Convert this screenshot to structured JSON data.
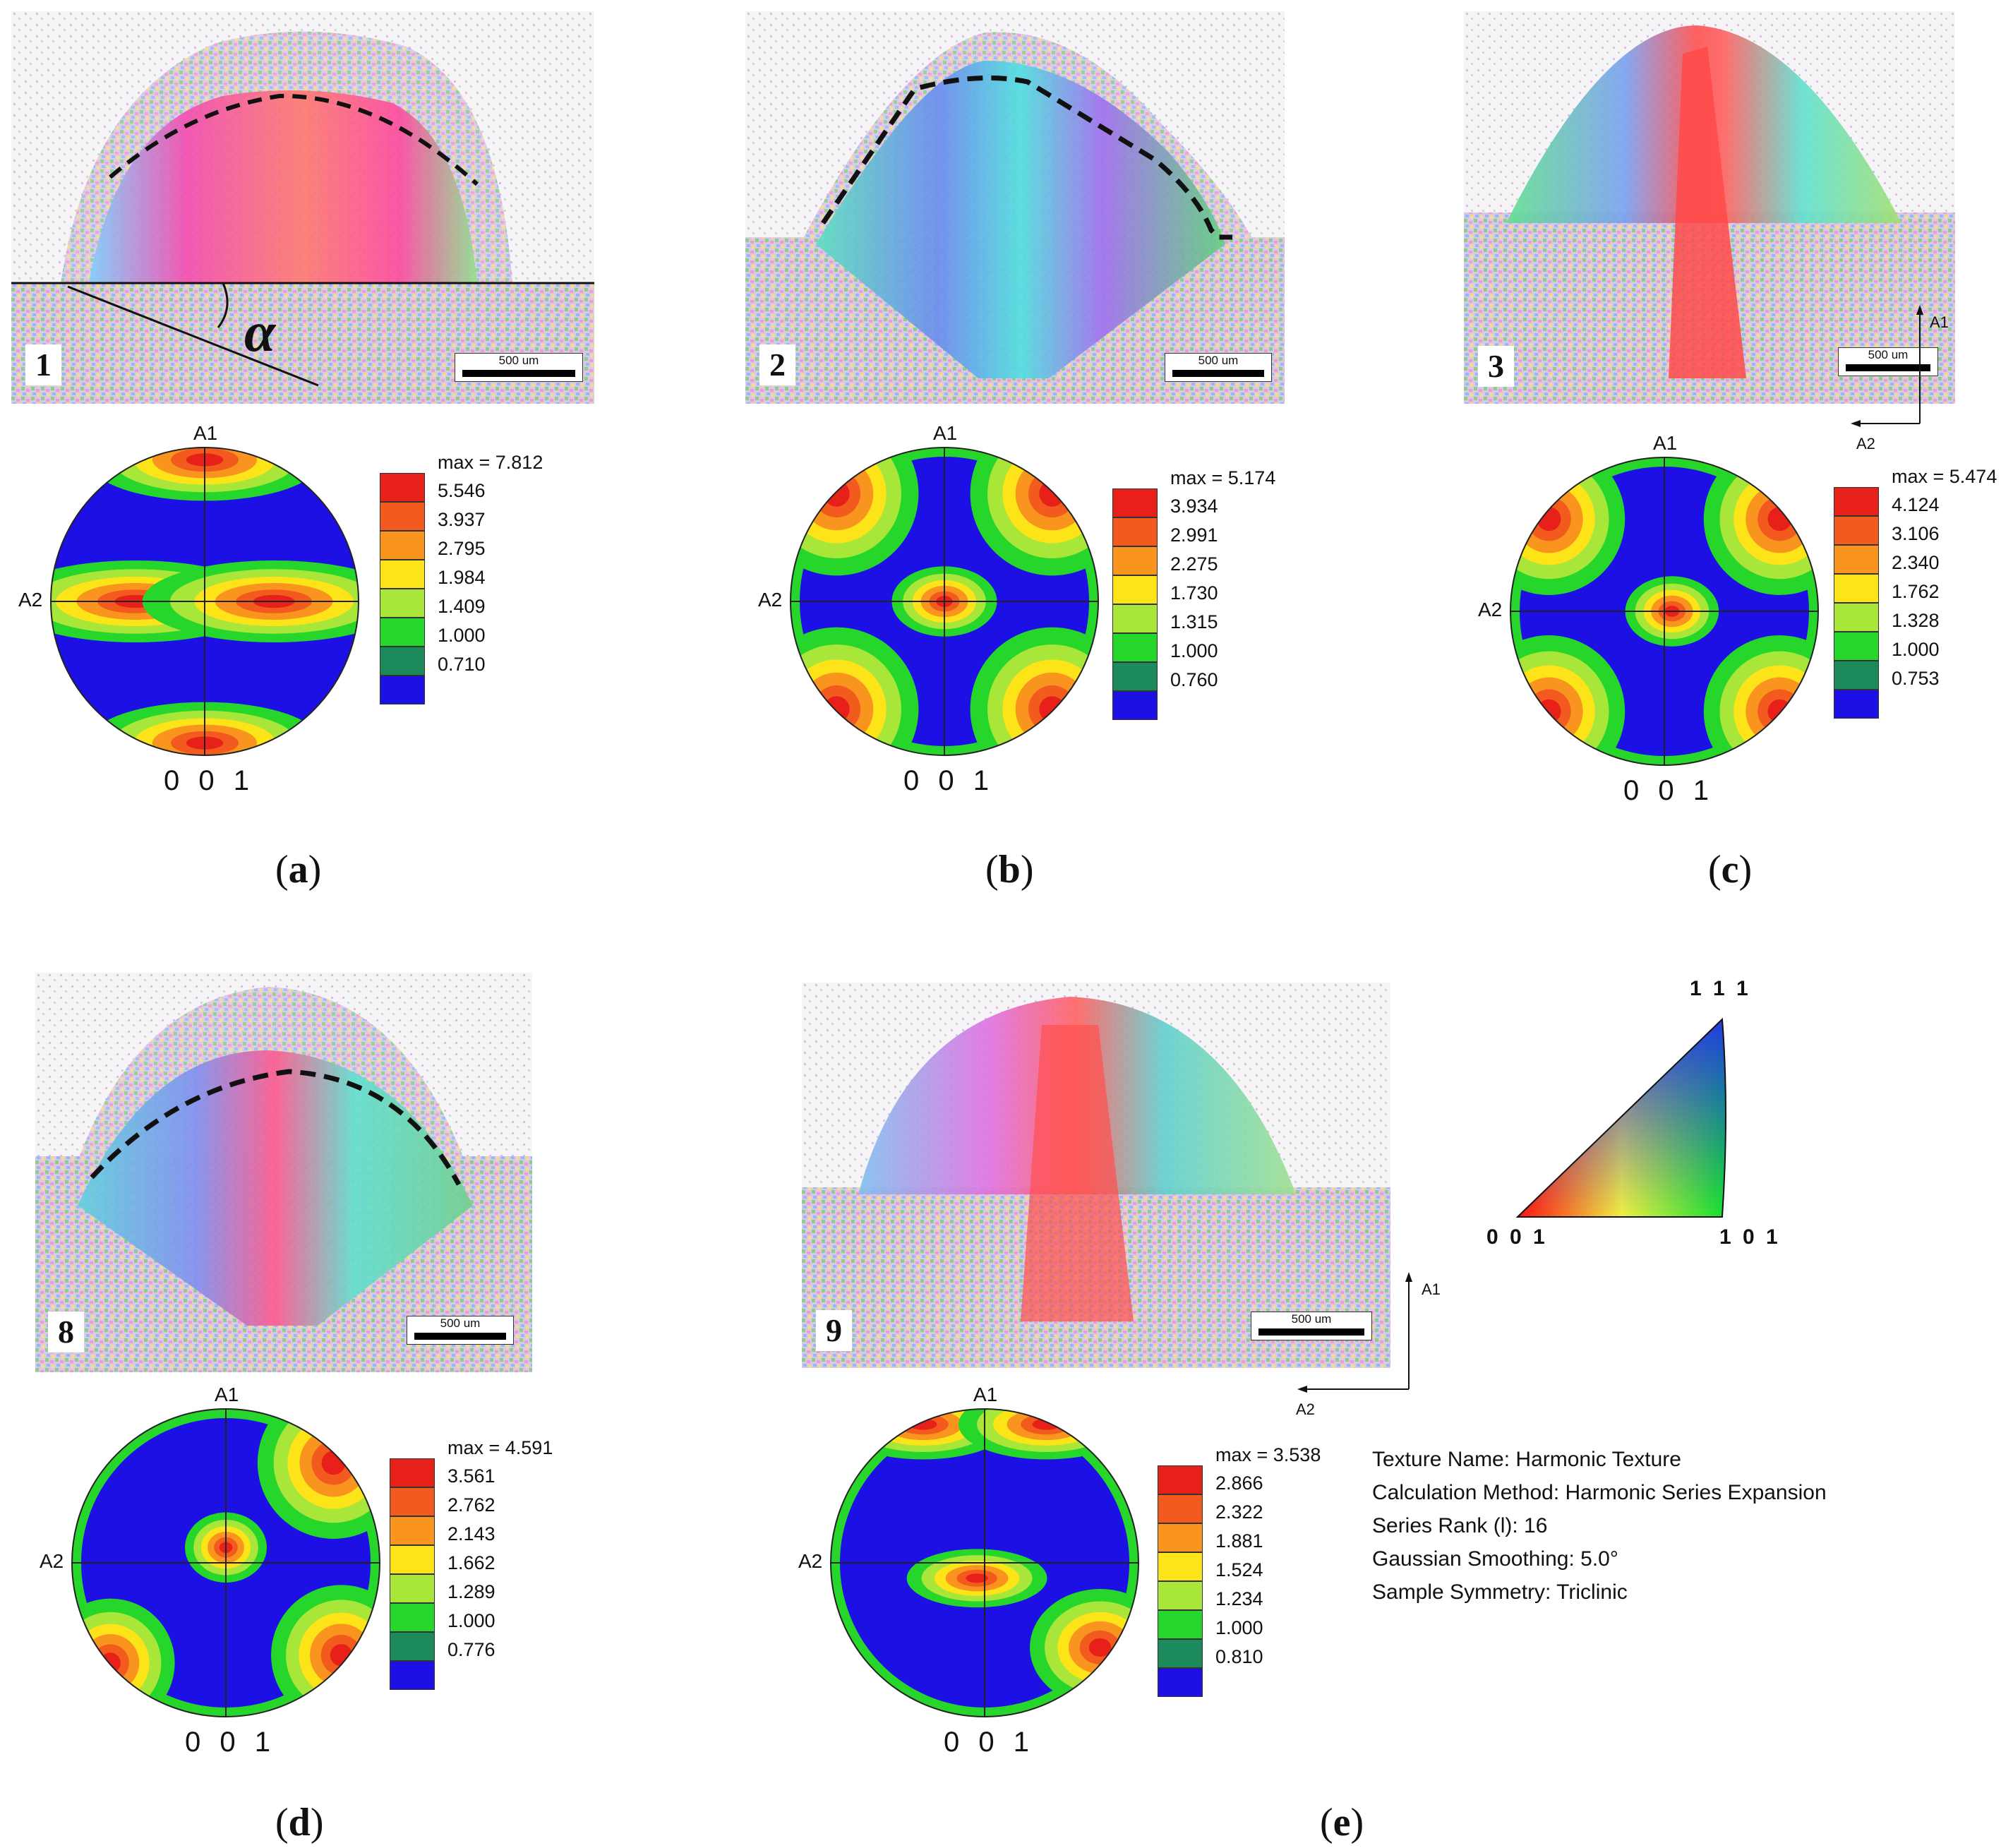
{
  "panels": [
    {
      "id": "a",
      "sample": "1",
      "scale": "500 um",
      "label": "(a)",
      "letter": "a",
      "pf_max": "max = 7.812",
      "levels": [
        "5.546",
        "3.937",
        "2.795",
        "1.984",
        "1.409",
        "1.000",
        "0.710"
      ],
      "pf_top": "A1",
      "pf_left": "A2",
      "pf_bottom": "0 0 1",
      "angle": "α"
    },
    {
      "id": "b",
      "sample": "2",
      "scale": "500 um",
      "label": "(b)",
      "letter": "b",
      "pf_max": "max = 5.174",
      "levels": [
        "3.934",
        "2.991",
        "2.275",
        "1.730",
        "1.315",
        "1.000",
        "0.760"
      ],
      "pf_top": "A1",
      "pf_left": "A2",
      "pf_bottom": "0 0 1"
    },
    {
      "id": "c",
      "sample": "3",
      "scale": "500 um",
      "label": "(c)",
      "letter": "c",
      "pf_max": "max = 5.474",
      "levels": [
        "4.124",
        "3.106",
        "2.340",
        "1.762",
        "1.328",
        "1.000",
        "0.753"
      ],
      "pf_top": "A1",
      "pf_left": "A2",
      "pf_bottom": "0 0 1"
    },
    {
      "id": "d",
      "sample": "8",
      "scale": "500 um",
      "label": "(d)",
      "letter": "d",
      "pf_max": "max = 4.591",
      "levels": [
        "3.561",
        "2.762",
        "2.143",
        "1.662",
        "1.289",
        "1.000",
        "0.776"
      ],
      "pf_top": "A1",
      "pf_left": "A2",
      "pf_bottom": "0 0 1"
    },
    {
      "id": "e",
      "sample": "9",
      "scale": "500 um",
      "label": "(e)",
      "letter": "e",
      "pf_max": "max = 3.538",
      "levels": [
        "2.866",
        "2.322",
        "1.881",
        "1.524",
        "1.234",
        "1.000",
        "0.810"
      ],
      "pf_top": "A1",
      "pf_left": "A2",
      "pf_bottom": "0 0 1"
    }
  ],
  "legend_colors": [
    "#e8201a",
    "#f25a1e",
    "#f9951f",
    "#fde419",
    "#a8e63a",
    "#27d62a",
    "#1d8a5c",
    "#1d10e4"
  ],
  "axes": {
    "a1": "A1",
    "a2": "A2"
  },
  "ipf": {
    "top": "1 1 1",
    "left": "0 0 1",
    "right": "1 0 1"
  },
  "texture_info": [
    "Texture Name: Harmonic Texture",
    "Calculation Method: Harmonic Series Expansion",
    "Series Rank (l): 16",
    "Gaussian Smoothing: 5.0°",
    "Sample Symmetry: Triclinic"
  ]
}
